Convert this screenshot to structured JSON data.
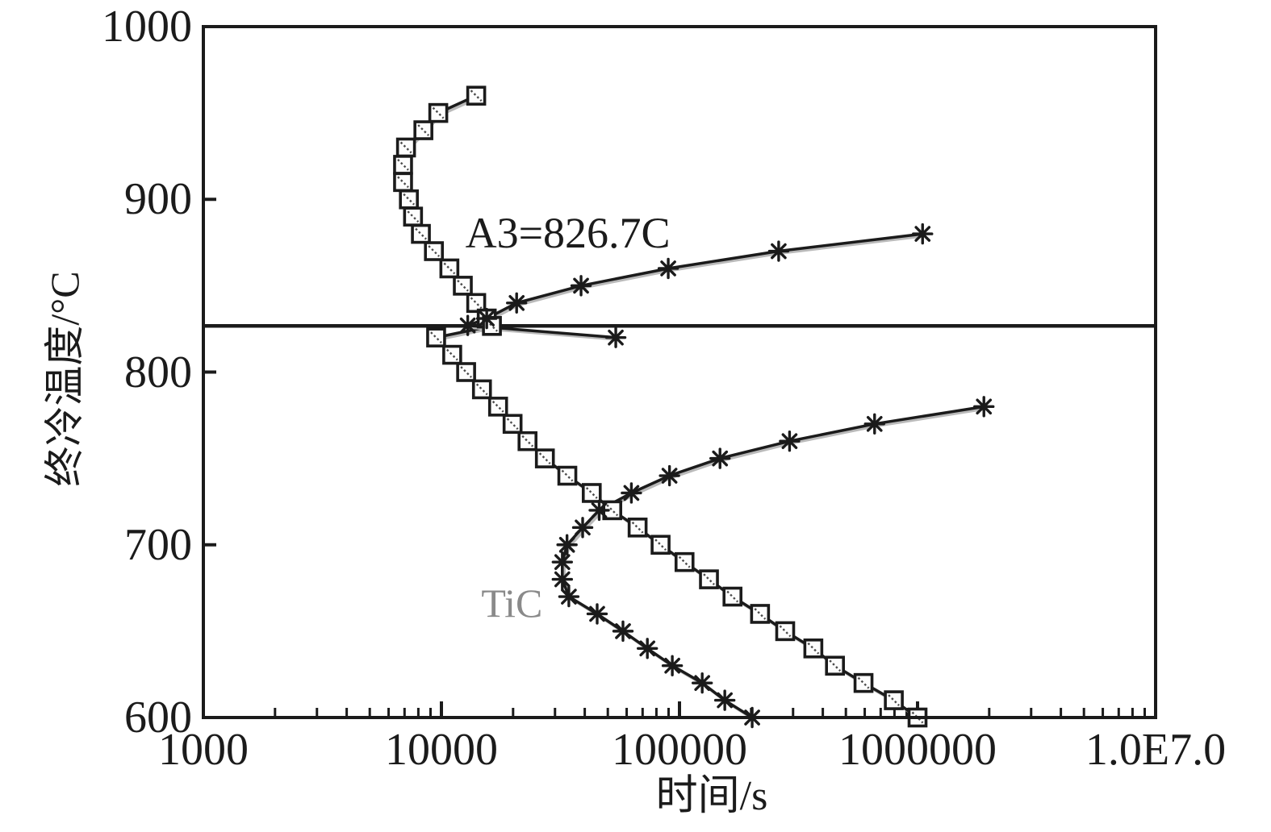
{
  "page": {
    "background": "#ffffff"
  },
  "chart_data": {
    "type": "line",
    "title": "",
    "xlabel": "时间/s",
    "ylabel": "终冷温度/°C",
    "x_scale": "log",
    "xlim": [
      1000,
      10000000
    ],
    "ylim": [
      600,
      1000
    ],
    "grid": false,
    "legend": null,
    "axis_color": "#1b1b1b",
    "shadow_color": "#bababa",
    "x_ticks": [
      {
        "value": 1000,
        "label": "1000"
      },
      {
        "value": 10000,
        "label": "10000"
      },
      {
        "value": 100000,
        "label": "100000"
      },
      {
        "value": 1000000,
        "label": "1000000"
      },
      {
        "value": 10000000,
        "label": "1.0E7.0"
      }
    ],
    "y_ticks": [
      {
        "value": 1000,
        "label": "1000"
      },
      {
        "value": 900,
        "label": "900"
      },
      {
        "value": 800,
        "label": "800"
      },
      {
        "value": 700,
        "label": "700"
      },
      {
        "value": 600,
        "label": "600"
      }
    ],
    "reference_line": {
      "axis": "y",
      "value": 826.7,
      "color": "#1b1b1b"
    },
    "annotations": [
      {
        "id": "a3-label",
        "text": "A3=826.7C",
        "t": 12600,
        "T": 893,
        "color": "#1b1b1b",
        "font_px": 54
      },
      {
        "id": "tic-label",
        "text": "TiC",
        "t": 14700,
        "T": 678,
        "color": "#8a8a8a",
        "font_px": 50
      }
    ],
    "series": [
      {
        "name": "transformation-curve-squares",
        "marker": "square",
        "color": "#1b1b1b",
        "points": [
          [
            14000,
            960
          ],
          [
            9700,
            950
          ],
          [
            8400,
            940
          ],
          [
            7100,
            930
          ],
          [
            6900,
            920
          ],
          [
            6900,
            910
          ],
          [
            7300,
            900
          ],
          [
            7600,
            890
          ],
          [
            8200,
            880
          ],
          [
            9300,
            870
          ],
          [
            10800,
            860
          ],
          [
            12300,
            850
          ],
          [
            14000,
            840
          ],
          [
            15500,
            831
          ],
          [
            16300,
            826.7
          ],
          [
            9500,
            820
          ],
          [
            11100,
            810
          ],
          [
            12700,
            800
          ],
          [
            14800,
            790
          ],
          [
            17300,
            780
          ],
          [
            19900,
            770
          ],
          [
            23000,
            760
          ],
          [
            27200,
            750
          ],
          [
            33800,
            740
          ],
          [
            42800,
            730
          ],
          [
            52200,
            720
          ],
          [
            66700,
            710
          ],
          [
            83300,
            700
          ],
          [
            105000,
            690
          ],
          [
            133000,
            680
          ],
          [
            167000,
            670
          ],
          [
            218000,
            660
          ],
          [
            278000,
            650
          ],
          [
            365000,
            640
          ],
          [
            450000,
            630
          ],
          [
            593000,
            620
          ],
          [
            795000,
            610
          ],
          [
            1000000,
            600
          ]
        ]
      },
      {
        "name": "austenite-curve-asterisks",
        "marker": "asterisk",
        "color": "#1b1b1b",
        "points": [
          [
            1050000,
            880
          ],
          [
            261000,
            870
          ],
          [
            89700,
            860
          ],
          [
            38600,
            850
          ],
          [
            20700,
            840
          ],
          [
            15500,
            831
          ],
          [
            12900,
            827
          ],
          [
            54000,
            820
          ]
        ]
      },
      {
        "name": "tic-curve-asterisks",
        "marker": "asterisk",
        "color": "#1b1b1b",
        "points": [
          [
            1900000,
            780
          ],
          [
            660000,
            770
          ],
          [
            290000,
            760
          ],
          [
            148000,
            750
          ],
          [
            90800,
            740
          ],
          [
            62800,
            730
          ],
          [
            46000,
            720
          ],
          [
            39200,
            710
          ],
          [
            33700,
            700
          ],
          [
            32200,
            690
          ],
          [
            32200,
            680
          ],
          [
            34300,
            670
          ],
          [
            45100,
            660
          ],
          [
            57900,
            650
          ],
          [
            73300,
            640
          ],
          [
            93300,
            630
          ],
          [
            124600,
            620
          ],
          [
            155000,
            610
          ],
          [
            202000,
            600
          ]
        ]
      }
    ]
  }
}
